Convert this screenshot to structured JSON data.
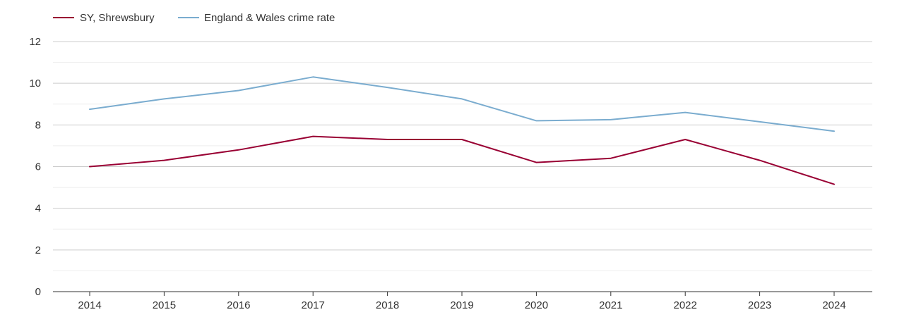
{
  "chart_data": {
    "type": "line",
    "title": "",
    "xlabel": "",
    "ylabel": "",
    "x": [
      "2014",
      "2015",
      "2016",
      "2017",
      "2018",
      "2019",
      "2020",
      "2021",
      "2022",
      "2023",
      "2024"
    ],
    "yticks": [
      "0",
      "2",
      "4",
      "6",
      "8",
      "10",
      "12"
    ],
    "ylim": [
      0,
      12
    ],
    "grid": true,
    "legend_position": "top-left",
    "series": [
      {
        "name": "SY, Shrewsbury",
        "color": "#990033",
        "values": [
          6.0,
          6.3,
          6.8,
          7.45,
          7.3,
          7.3,
          6.2,
          6.4,
          7.3,
          6.3,
          5.15
        ]
      },
      {
        "name": "England & Wales crime rate",
        "color": "#7aaccf",
        "values": [
          8.75,
          9.25,
          9.65,
          10.3,
          9.8,
          9.25,
          8.2,
          8.25,
          8.6,
          8.15,
          7.7
        ]
      }
    ]
  }
}
